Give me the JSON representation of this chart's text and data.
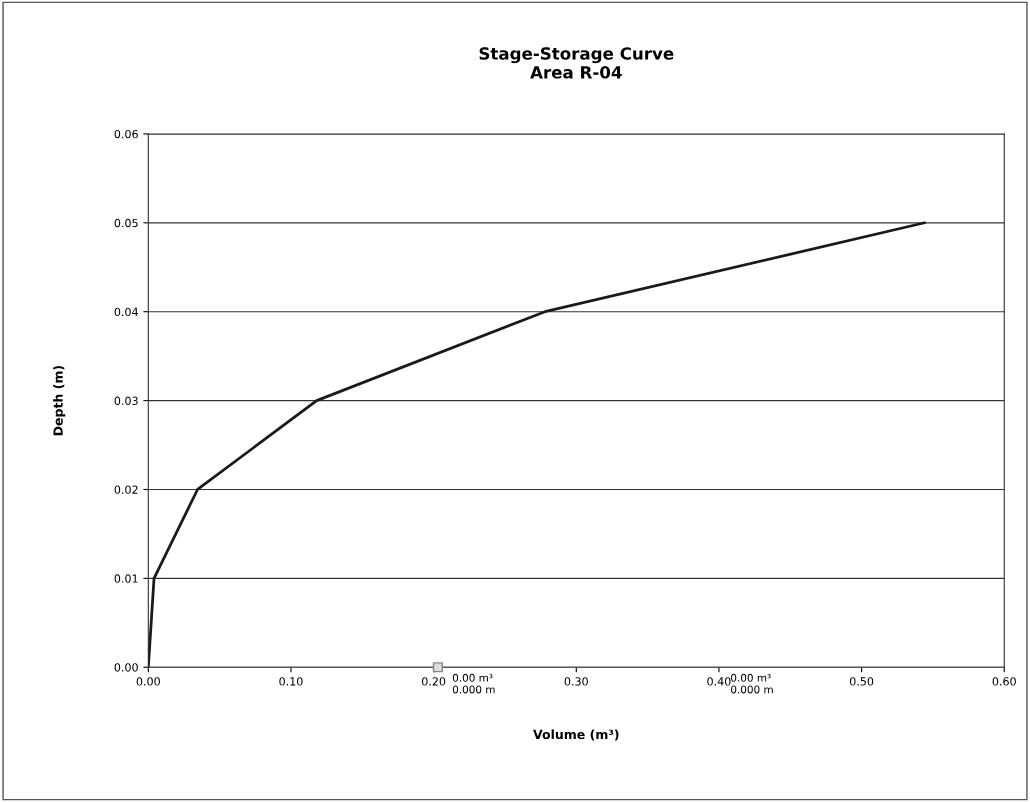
{
  "chart_data": {
    "type": "line",
    "title": "Stage-Storage Curve\nArea R-04",
    "xlabel": "Volume (m³)",
    "ylabel": "Depth (m)",
    "series": [
      {
        "color": "#1a1a1a",
        "marker": "none",
        "x": [
          0,
          0.004,
          0.0345,
          0.118,
          0.278,
          0.544
        ],
        "values": [
          0,
          0.01,
          0.02,
          0.03,
          0.04,
          0.05
        ]
      },
      {
        "type": "scatter",
        "color": "#888888",
        "marker": "square",
        "x": [
          0.203
        ],
        "values": [
          0
        ]
      }
    ],
    "annotations": [
      "0.00 m³\n0.000 m",
      "0.00 m³\n0.000 m"
    ],
    "xlim": [
      0,
      0.6
    ],
    "ylim": [
      0,
      0.06
    ],
    "xticks": [
      {
        "value": 0,
        "label": "0.00"
      },
      {
        "value": 0.1,
        "label": "0.10"
      },
      {
        "value": 0.2,
        "label": "0.20"
      },
      {
        "value": 0.3,
        "label": "0.30"
      },
      {
        "value": 0.4,
        "label": "0.40"
      },
      {
        "value": 0.5,
        "label": "0.50"
      },
      {
        "value": 0.6,
        "label": "0.60"
      }
    ],
    "yticks": [
      {
        "value": 0,
        "label": "0.00"
      },
      {
        "value": 0.01,
        "label": "0.01"
      },
      {
        "value": 0.02,
        "label": "0.02"
      },
      {
        "value": 0.03,
        "label": "0.03"
      },
      {
        "value": 0.04,
        "label": "0.04"
      },
      {
        "value": 0.05,
        "label": "0.05"
      },
      {
        "value": 0.06,
        "label": "0.06"
      }
    ],
    "grid": "y"
  }
}
